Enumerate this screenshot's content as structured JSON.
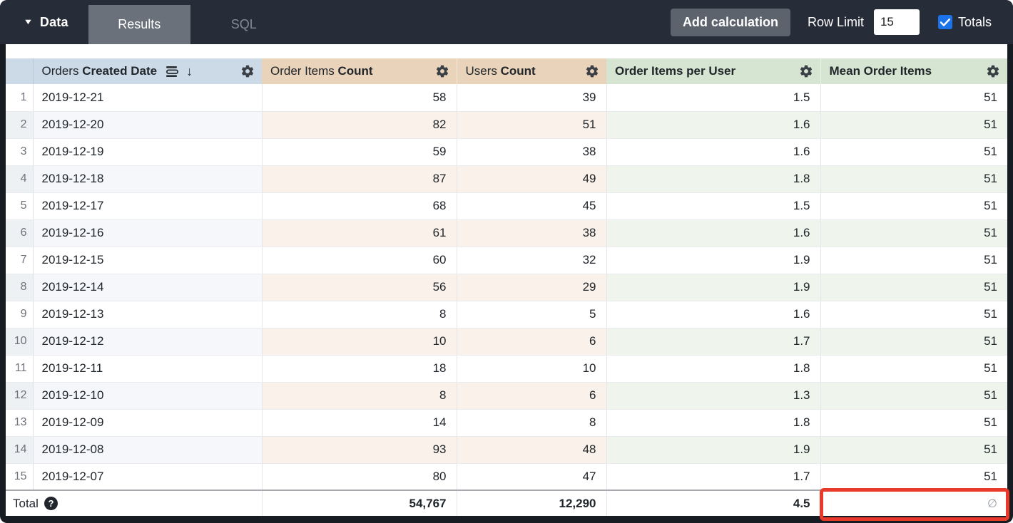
{
  "topbar": {
    "data_label": "Data",
    "caret_glyph": "▼",
    "tabs": [
      {
        "label": "Results",
        "active": true
      },
      {
        "label": "SQL",
        "active": false
      }
    ],
    "add_calculation_label": "Add calculation",
    "row_limit_label": "Row Limit",
    "row_limit_value": "15",
    "totals_label": "Totals",
    "totals_checked": true
  },
  "icons": {
    "sort_arrow_glyph": "↓",
    "help_glyph": "?",
    "empty_set_glyph": "∅"
  },
  "colors": {
    "topbar_bg": "#262d38",
    "active_tab_bg": "#6a717b",
    "dimension_header_bg": "#ccd9e6",
    "measure_header_bg": "#e9d3ba",
    "calculation_header_bg": "#d6e5d2",
    "checkbox_blue": "#1a73e8",
    "annotation_red": "#e8392b"
  },
  "table": {
    "columns": [
      {
        "prefix": "Orders ",
        "bold": "Created Date",
        "type": "dimension",
        "sorted": "desc"
      },
      {
        "prefix": "Order Items ",
        "bold": "Count",
        "type": "measure"
      },
      {
        "prefix": "Users ",
        "bold": "Count",
        "type": "measure"
      },
      {
        "prefix": "",
        "bold": "Order Items per User",
        "type": "calculation"
      },
      {
        "prefix": "",
        "bold": "Mean Order Items",
        "type": "calculation"
      }
    ],
    "rows": [
      {
        "num": "1",
        "date": "2019-12-21",
        "order_items_count": "58",
        "users_count": "39",
        "order_items_per_user": "1.5",
        "mean_order_items": "51"
      },
      {
        "num": "2",
        "date": "2019-12-20",
        "order_items_count": "82",
        "users_count": "51",
        "order_items_per_user": "1.6",
        "mean_order_items": "51"
      },
      {
        "num": "3",
        "date": "2019-12-19",
        "order_items_count": "59",
        "users_count": "38",
        "order_items_per_user": "1.6",
        "mean_order_items": "51"
      },
      {
        "num": "4",
        "date": "2019-12-18",
        "order_items_count": "87",
        "users_count": "49",
        "order_items_per_user": "1.8",
        "mean_order_items": "51"
      },
      {
        "num": "5",
        "date": "2019-12-17",
        "order_items_count": "68",
        "users_count": "45",
        "order_items_per_user": "1.5",
        "mean_order_items": "51"
      },
      {
        "num": "6",
        "date": "2019-12-16",
        "order_items_count": "61",
        "users_count": "38",
        "order_items_per_user": "1.6",
        "mean_order_items": "51"
      },
      {
        "num": "7",
        "date": "2019-12-15",
        "order_items_count": "60",
        "users_count": "32",
        "order_items_per_user": "1.9",
        "mean_order_items": "51"
      },
      {
        "num": "8",
        "date": "2019-12-14",
        "order_items_count": "56",
        "users_count": "29",
        "order_items_per_user": "1.9",
        "mean_order_items": "51"
      },
      {
        "num": "9",
        "date": "2019-12-13",
        "order_items_count": "8",
        "users_count": "5",
        "order_items_per_user": "1.6",
        "mean_order_items": "51"
      },
      {
        "num": "10",
        "date": "2019-12-12",
        "order_items_count": "10",
        "users_count": "6",
        "order_items_per_user": "1.7",
        "mean_order_items": "51"
      },
      {
        "num": "11",
        "date": "2019-12-11",
        "order_items_count": "18",
        "users_count": "10",
        "order_items_per_user": "1.8",
        "mean_order_items": "51"
      },
      {
        "num": "12",
        "date": "2019-12-10",
        "order_items_count": "8",
        "users_count": "6",
        "order_items_per_user": "1.3",
        "mean_order_items": "51"
      },
      {
        "num": "13",
        "date": "2019-12-09",
        "order_items_count": "14",
        "users_count": "8",
        "order_items_per_user": "1.8",
        "mean_order_items": "51"
      },
      {
        "num": "14",
        "date": "2019-12-08",
        "order_items_count": "93",
        "users_count": "48",
        "order_items_per_user": "1.9",
        "mean_order_items": "51"
      },
      {
        "num": "15",
        "date": "2019-12-07",
        "order_items_count": "80",
        "users_count": "47",
        "order_items_per_user": "1.7",
        "mean_order_items": "51"
      }
    ],
    "total": {
      "label": "Total",
      "order_items_count": "54,767",
      "users_count": "12,290",
      "order_items_per_user": "4.5",
      "mean_order_items": "∅"
    }
  }
}
